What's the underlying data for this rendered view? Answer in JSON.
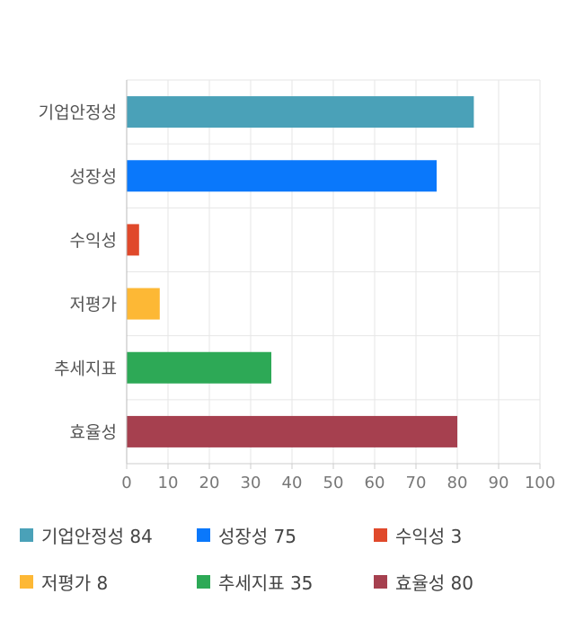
{
  "chart_data": {
    "type": "bar",
    "orientation": "horizontal",
    "categories": [
      "기업안정성",
      "성장성",
      "수익성",
      "저평가",
      "추세지표",
      "효율성"
    ],
    "values": [
      84,
      75,
      3,
      8,
      35,
      80
    ],
    "colors": [
      "#4aa1b8",
      "#0a78fb",
      "#e0492b",
      "#fdb835",
      "#2da956",
      "#a6404f"
    ],
    "xlim": [
      0,
      100
    ],
    "xticks": [
      "0",
      "10",
      "20",
      "30",
      "40",
      "50",
      "60",
      "70",
      "80",
      "90",
      "100"
    ],
    "grid": true,
    "legend_position": "bottom"
  },
  "legend": [
    {
      "label": "기업안정성 84",
      "color": "#4aa1b8"
    },
    {
      "label": "성장성 75",
      "color": "#0a78fb"
    },
    {
      "label": "수익성 3",
      "color": "#e0492b"
    },
    {
      "label": "저평가 8",
      "color": "#fdb835"
    },
    {
      "label": "추세지표 35",
      "color": "#2da956"
    },
    {
      "label": "효율성 80",
      "color": "#a6404f"
    }
  ]
}
